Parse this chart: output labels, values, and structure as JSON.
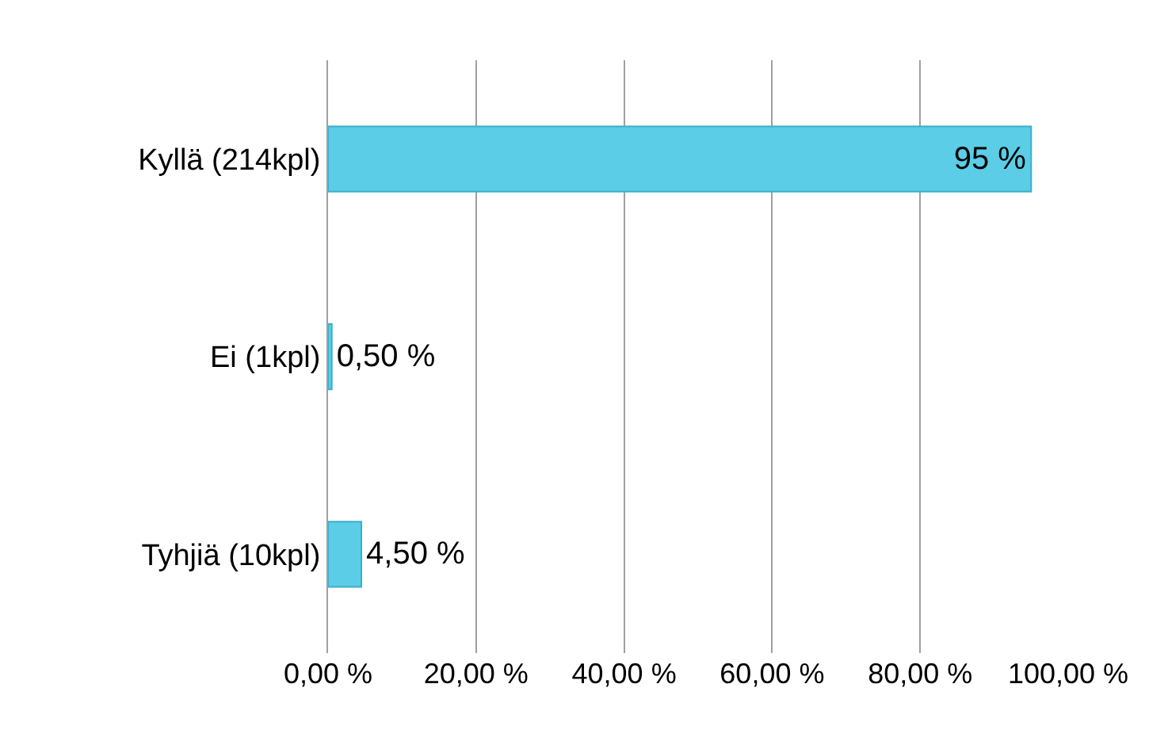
{
  "chart_data": {
    "type": "bar",
    "orientation": "horizontal",
    "categories": [
      "Kyllä (214kpl)",
      "Ei (1kpl)",
      "Tyhjiä (10kpl)"
    ],
    "values": [
      95,
      0.5,
      4.5
    ],
    "color": "#5bcde6",
    "value_labels": [
      "95 %",
      "0,50 %",
      "4,50 %"
    ],
    "xlim": [
      0,
      100
    ],
    "xticks": [
      {
        "value": 0,
        "label": "0,00 %"
      },
      {
        "value": 20,
        "label": "20,00 %"
      },
      {
        "value": 40,
        "label": "40,00 %"
      },
      {
        "value": 60,
        "label": "60,00 %"
      },
      {
        "value": 80,
        "label": "80,00 %"
      },
      {
        "value": 100,
        "label": "100,00 %"
      }
    ],
    "grid": "x"
  }
}
